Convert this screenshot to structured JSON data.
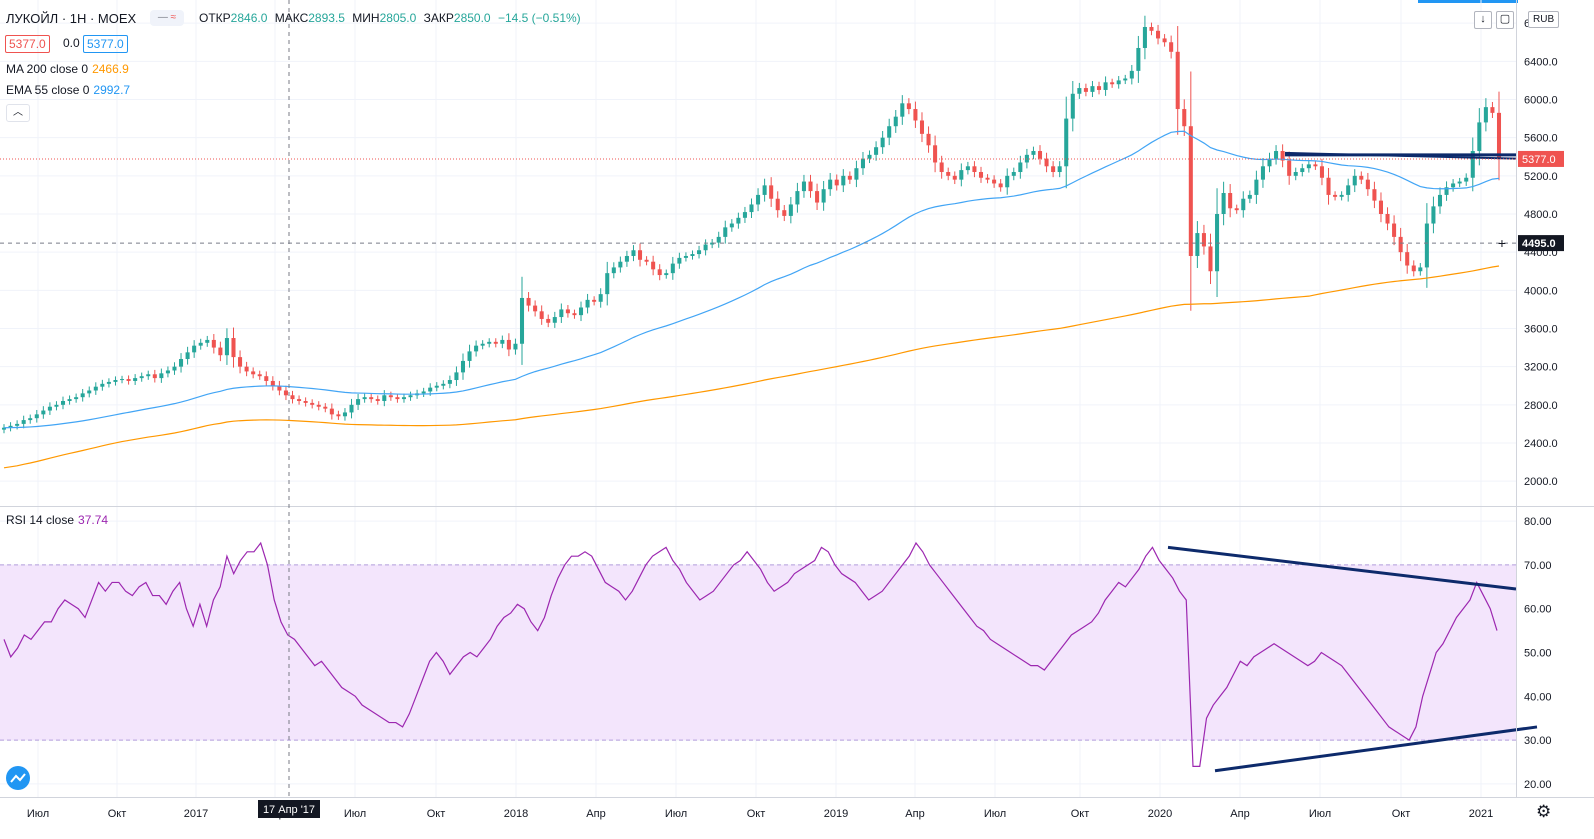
{
  "header": {
    "symbol": "ЛУКОЙЛ · 1Н · MOEX",
    "open_label": "ОТКР",
    "open": "2846.0",
    "high_label": "МАКС",
    "high": "2893.5",
    "low_label": "МИН",
    "low": "2805.0",
    "close_label": "ЗАКР",
    "close": "2850.0",
    "change": "−14.5 (−0.51%)",
    "bid": "5377.0",
    "spread": "0.0",
    "ask": "5377.0"
  },
  "indicators": {
    "ma_label": "MA 200 close 0",
    "ma_value": "2466.9",
    "ema_label": "EMA 55 close 0",
    "ema_value": "2992.7",
    "rsi_label": "RSI 14 close",
    "rsi_value": "37.74"
  },
  "controls": {
    "currency": "RUB",
    "collapse_icon": "chevron-up-icon",
    "download_icon": "arrow-down-icon",
    "fullscreen_icon": "maximize-icon",
    "settings_icon": "gear-icon"
  },
  "colors": {
    "up": "#26a69a",
    "down": "#ef5350",
    "ma": "#ff9800",
    "ema": "#42a5f5",
    "rsi": "#9c27b0",
    "band": "#f3e5fc",
    "trend": "#0d2a6b"
  },
  "chart_data": {
    "type": "candlestick",
    "x_tick_labels": [
      "Июл",
      "Окт",
      "2017",
      "Апр",
      "Июл",
      "Окт",
      "2018",
      "Апр",
      "Июл",
      "Окт",
      "2019",
      "Апр",
      "Июл",
      "Окт",
      "2020",
      "Апр",
      "Июл",
      "Окт",
      "2021"
    ],
    "crosshair_label": "17 Апр '17",
    "price_axis": {
      "ticks": [
        2000,
        2400,
        2800,
        3200,
        3600,
        4000,
        4400,
        4800,
        5200,
        5600,
        6000,
        6400,
        6800
      ],
      "range": [
        1750,
        6980
      ]
    },
    "crosshair_price": "4495.0",
    "last_price": "5377.0",
    "rsi_axis": {
      "ticks": [
        20,
        30,
        40,
        50,
        60,
        70,
        80
      ],
      "range": [
        17,
        83
      ],
      "band": [
        30,
        70
      ]
    },
    "weekly_close": [
      2560,
      2580,
      2600,
      2640,
      2660,
      2700,
      2740,
      2780,
      2800,
      2840,
      2860,
      2880,
      2920,
      2950,
      2990,
      3020,
      3040,
      3060,
      3070,
      3050,
      3080,
      3100,
      3120,
      3080,
      3130,
      3160,
      3200,
      3280,
      3350,
      3420,
      3450,
      3480,
      3400,
      3320,
      3500,
      3300,
      3200,
      3150,
      3120,
      3100,
      3050,
      3000,
      2950,
      2900,
      2860,
      2840,
      2820,
      2800,
      2780,
      2760,
      2700,
      2680,
      2720,
      2800,
      2860,
      2880,
      2860,
      2840,
      2900,
      2880,
      2860,
      2880,
      2900,
      2920,
      2940,
      2980,
      3000,
      3020,
      3060,
      3140,
      3260,
      3360,
      3420,
      3440,
      3460,
      3440,
      3480,
      3380,
      3440,
      3920,
      3840,
      3780,
      3700,
      3660,
      3720,
      3800,
      3760,
      3740,
      3820,
      3900,
      3880,
      3960,
      4180,
      4240,
      4300,
      4360,
      4420,
      4320,
      4300,
      4220,
      4160,
      4180,
      4280,
      4340,
      4360,
      4380,
      4420,
      4480,
      4500,
      4560,
      4660,
      4700,
      4760,
      4820,
      4900,
      5000,
      5100,
      4960,
      4840,
      4780,
      4900,
      5040,
      5140,
      5040,
      4920,
      5060,
      5160,
      5100,
      5200,
      5160,
      5280,
      5380,
      5420,
      5500,
      5600,
      5720,
      5820,
      5960,
      5900,
      5780,
      5640,
      5520,
      5340,
      5240,
      5200,
      5160,
      5260,
      5300,
      5240,
      5180,
      5160,
      5120,
      5080,
      5200,
      5240,
      5340,
      5420,
      5460,
      5380,
      5300,
      5240,
      5300,
      5800,
      6060,
      6120,
      6080,
      6140,
      6100,
      6180,
      6160,
      6200,
      6220,
      6300,
      6540,
      6760,
      6720,
      6640,
      6600,
      6500,
      5900,
      5720,
      4360,
      4600,
      4460,
      4200,
      4800,
      5020,
      4860,
      4840,
      4960,
      5000,
      5160,
      5300,
      5380,
      5460,
      5360,
      5200,
      5240,
      5280,
      5320,
      5300,
      5180,
      5000,
      4980,
      5000,
      5100,
      5200,
      5160,
      5060,
      4940,
      4800,
      4700,
      4560,
      4400,
      4260,
      4200,
      4240,
      4700,
      4880,
      5000,
      5080,
      5120,
      5140,
      5180,
      5460,
      5760,
      5920,
      5860,
      5377
    ]
  },
  "rsi_data": [
    53,
    49,
    51,
    54,
    53,
    55,
    57,
    57,
    60,
    62,
    61,
    60,
    58,
    62,
    66,
    64,
    66,
    66,
    64,
    63,
    65,
    66,
    63,
    63,
    61,
    64,
    66,
    60,
    56,
    61,
    56,
    62,
    65,
    72,
    68,
    71,
    73,
    73,
    75,
    70,
    62,
    57,
    54,
    53,
    51,
    49,
    47,
    48,
    46,
    44,
    42,
    41,
    40,
    38,
    37,
    36,
    35,
    34,
    34,
    33,
    36,
    40,
    44,
    48,
    50,
    48,
    45,
    47,
    49,
    50,
    49,
    51,
    53,
    56,
    58,
    59,
    61,
    60,
    57,
    55,
    58,
    63,
    67,
    70,
    72,
    72,
    73,
    72,
    69,
    66,
    65,
    64,
    62,
    64,
    67,
    70,
    72,
    73,
    74,
    71,
    69,
    66,
    64,
    62,
    63,
    64,
    66,
    68,
    70,
    71,
    73,
    71,
    69,
    66,
    64,
    65,
    66,
    68,
    69,
    70,
    71,
    74,
    73,
    70,
    68,
    67,
    66,
    64,
    62,
    63,
    64,
    66,
    68,
    70,
    72,
    75,
    73,
    70,
    68,
    66,
    64,
    62,
    60,
    58,
    56,
    55,
    53,
    52,
    51,
    50,
    49,
    48,
    47,
    47,
    46,
    48,
    50,
    52,
    54,
    55,
    56,
    57,
    59,
    62,
    64,
    66,
    65,
    67,
    69,
    72,
    74,
    71,
    69,
    67,
    64,
    62,
    24,
    24,
    35,
    38,
    40,
    42,
    45,
    48,
    47,
    49,
    50,
    51,
    52,
    51,
    50,
    49,
    48,
    47,
    48,
    50,
    49,
    48,
    47,
    45,
    43,
    41,
    39,
    37,
    35,
    33,
    32,
    31,
    30,
    33,
    40,
    45,
    50,
    52,
    55,
    58,
    60,
    62,
    66,
    63,
    60,
    55
  ]
}
